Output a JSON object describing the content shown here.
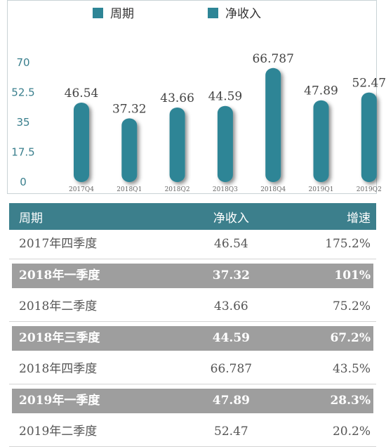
{
  "legend": {
    "item1": "周期",
    "item2": "净收入"
  },
  "colors": {
    "bar": "#2e8596",
    "header": "#3c7f8c",
    "shaded_row": "#9e9e9e"
  },
  "chart_data": {
    "type": "bar",
    "categories": [
      "2017Q4",
      "2018Q1",
      "2018Q2",
      "2018Q3",
      "2018Q4",
      "2019Q1",
      "2019Q2"
    ],
    "values": [
      46.54,
      37.32,
      43.66,
      44.59,
      66.787,
      47.89,
      52.47
    ],
    "value_labels": [
      "46.54",
      "37.32",
      "43.66",
      "44.59",
      "66.787",
      "47.89",
      "52.47"
    ],
    "ylim": [
      0,
      70
    ],
    "yticks": [
      "0",
      "17.5",
      "35",
      "52.5",
      "70"
    ],
    "legend_position": "top"
  },
  "table": {
    "headers": [
      "周期",
      "净收入",
      "增速"
    ],
    "rows": [
      {
        "period": "2017年四季度",
        "income": "46.54",
        "growth": "175.2%",
        "shaded": false
      },
      {
        "period": "2018年一季度",
        "income": "37.32",
        "growth": "101%",
        "shaded": true
      },
      {
        "period": "2018年二季度",
        "income": "43.66",
        "growth": "75.2%",
        "shaded": false
      },
      {
        "period": "2018年三季度",
        "income": "44.59",
        "growth": "67.2%",
        "shaded": true
      },
      {
        "period": "2018年四季度",
        "income": "66.787",
        "growth": "43.5%",
        "shaded": false
      },
      {
        "period": "2019年一季度",
        "income": "47.89",
        "growth": "28.3%",
        "shaded": true
      },
      {
        "period": "2019年二季度",
        "income": "52.47",
        "growth": "20.2%",
        "shaded": false
      }
    ]
  }
}
